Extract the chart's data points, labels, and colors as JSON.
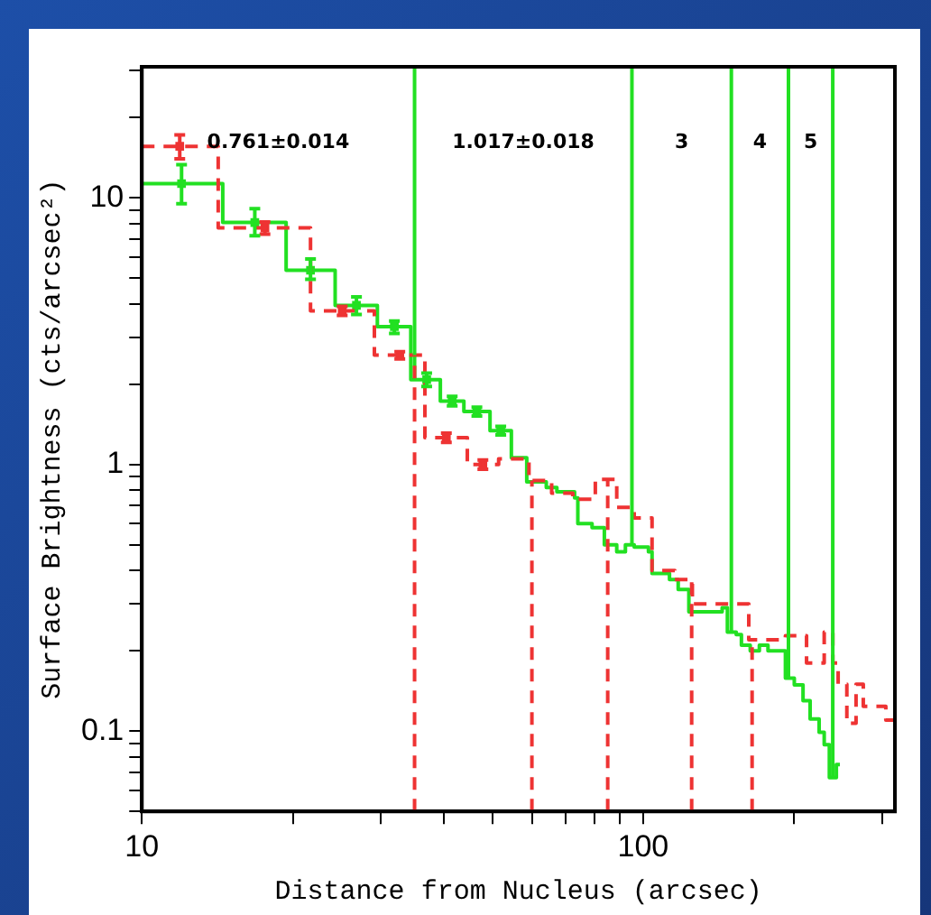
{
  "chart_data": {
    "type": "step",
    "xlabel": "Distance from Nucleus (arcsec)",
    "ylabel": "Surface Brightness (cts/arcsec²)",
    "log": "xy",
    "grid": false,
    "legend": false,
    "xlim": [
      10,
      318
    ],
    "ylim": [
      0.05,
      31
    ],
    "xticks": [
      10,
      {
        "value": 20,
        "label": null
      },
      {
        "value": 30,
        "label": null
      },
      {
        "value": 40,
        "label": null
      },
      {
        "value": 50,
        "label": null
      },
      {
        "value": 60,
        "label": null
      },
      {
        "value": 70,
        "label": null
      },
      {
        "value": 80,
        "label": null
      },
      {
        "value": 90,
        "label": null
      },
      100,
      {
        "value": 200,
        "label": null
      },
      {
        "value": 300,
        "label": null
      }
    ],
    "yticks": [
      {
        "value": 0.05,
        "label": null
      },
      {
        "value": 0.06,
        "label": null
      },
      {
        "value": 0.07,
        "label": null
      },
      {
        "value": 0.08,
        "label": null
      },
      {
        "value": 0.09,
        "label": null
      },
      0.1,
      {
        "value": 0.2,
        "label": null
      },
      {
        "value": 0.3,
        "label": null
      },
      {
        "value": 0.4,
        "label": null
      },
      {
        "value": 0.5,
        "label": null
      },
      {
        "value": 0.6,
        "label": null
      },
      {
        "value": 0.7,
        "label": null
      },
      {
        "value": 0.8,
        "label": null
      },
      {
        "value": 0.9,
        "label": null
      },
      1,
      {
        "value": 2,
        "label": null
      },
      {
        "value": 3,
        "label": null
      },
      {
        "value": 4,
        "label": null
      },
      {
        "value": 5,
        "label": null
      },
      {
        "value": 6,
        "label": null
      },
      {
        "value": 7,
        "label": null
      },
      {
        "value": 8,
        "label": null
      },
      {
        "value": 9,
        "label": null
      },
      10,
      {
        "value": 20,
        "label": null
      },
      {
        "value": 30,
        "label": null
      }
    ],
    "series": [
      {
        "color": "#ee3333",
        "line_style": "dashed",
        "x": [
          10,
          14.2,
          21.7,
          29.1,
          36.7,
          44.6,
          51.5,
          59.2,
          65.7,
          72.4,
          80.3,
          88.6,
          96.0,
          104.2,
          115.7,
          125.4,
          162.5,
          192.3,
          211.9,
          229.8,
          239.1,
          245,
          255,
          266,
          275,
          305,
          318
        ],
        "values": [
          15.6,
          7.71,
          3.77,
          2.57,
          1.26,
          1.0,
          1.05,
          0.87,
          0.78,
          0.74,
          0.88,
          0.69,
          0.63,
          0.4,
          0.37,
          0.3,
          0.22,
          0.228,
          0.18,
          0.235,
          0.18,
          0.15,
          0.107,
          0.15,
          0.124,
          0.11,
          0.11
        ]
      },
      {
        "type": "scatter",
        "marker": "square",
        "color": "#ee3333",
        "x": [
          11.9,
          17.6,
          25.1,
          32.7,
          40.5,
          47.9
        ],
        "values": [
          15.6,
          7.71,
          3.77,
          2.57,
          1.26,
          1.0
        ],
        "errors": [
          [
            14,
            17.2
          ],
          0.4,
          0.15,
          0.08,
          0.05,
          0.04
        ]
      },
      {
        "type": "scatter",
        "marker": "square",
        "color": "#22e022",
        "x": [
          12.0,
          16.8,
          21.7,
          26.8,
          31.9,
          37.0,
          41.6,
          46.6,
          52.0
        ],
        "values": [
          11.3,
          8.08,
          5.35,
          3.95,
          3.29,
          2.08,
          1.73,
          1.58,
          1.34
        ],
        "errors": [
          [
            9.5,
            13.3
          ],
          [
            7.2,
            9.1
          ],
          [
            4.95,
            5.9
          ],
          [
            3.65,
            4.25
          ],
          [
            3.1,
            3.45
          ],
          0.12,
          0.07,
          0.06,
          0.05
        ]
      },
      {
        "color": "#22e022",
        "line_style": "solid",
        "x": [
          10,
          14.5,
          19.4,
          24.3,
          29.5,
          34.4,
          39.4,
          43.9,
          49.5,
          54.6,
          58.6,
          64.1,
          67.3,
          73.0,
          74.1,
          79.1,
          83.7,
          88.6,
          92.2,
          96.0,
          102.5,
          104.2,
          112.9,
          117.5,
          123.4,
          130.6,
          143.8,
          147.3,
          153.4,
          157.1,
          163.6,
          170.6,
          177.5,
          192.3,
          200.3,
          208.5,
          215.4,
          224.5,
          229.8,
          235.3,
          243,
          247
        ],
        "values": [
          11.3,
          8.08,
          5.35,
          3.95,
          3.29,
          2.08,
          1.73,
          1.58,
          1.34,
          1.06,
          0.86,
          0.82,
          0.79,
          0.75,
          0.6,
          0.58,
          0.5,
          0.47,
          0.5,
          0.49,
          0.47,
          0.39,
          0.37,
          0.34,
          0.28,
          0.28,
          0.29,
          0.235,
          0.23,
          0.21,
          0.2,
          0.21,
          0.2,
          0.158,
          0.149,
          0.13,
          0.111,
          0.099,
          0.089,
          0.067,
          0.075,
          0.075
        ]
      }
    ],
    "ref_lines": [
      {
        "axis": "x",
        "value": 35,
        "color": "#22e022",
        "line_style": "solid"
      },
      {
        "axis": "x",
        "value": 95,
        "color": "#22e022",
        "line_style": "solid"
      },
      {
        "axis": "x",
        "value": 150,
        "color": "#22e022",
        "line_style": "solid"
      },
      {
        "axis": "x",
        "value": 195,
        "color": "#22e022",
        "line_style": "solid"
      },
      {
        "axis": "x",
        "value": 239,
        "color": "#22e022",
        "line_style": "solid"
      },
      {
        "axis": "x",
        "value": 35,
        "color": "#ee3333",
        "line_style": "dashed"
      },
      {
        "axis": "x",
        "value": 60,
        "color": "#ee3333",
        "line_style": "dashed"
      },
      {
        "axis": "x",
        "value": 85,
        "color": "#ee3333",
        "line_style": "dashed"
      },
      {
        "axis": "x",
        "value": 125,
        "color": "#ee3333",
        "line_style": "dashed"
      },
      {
        "axis": "x",
        "value": 165,
        "color": "#ee3333",
        "line_style": "dashed"
      }
    ],
    "annotations": [
      "0.761±0.014",
      "1.017±0.018",
      "3",
      "4",
      "5"
    ]
  }
}
